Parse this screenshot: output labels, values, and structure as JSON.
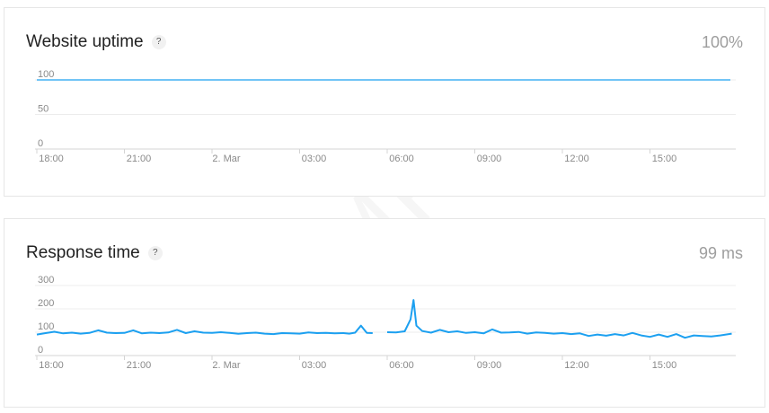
{
  "watermark": "SAMPLE",
  "colors": {
    "line": "#1ca0f0",
    "grid": "#ececec",
    "axis": "#d4d4d4",
    "value": "#9e9e9e"
  },
  "icons": {
    "help": "question-mark-icon"
  },
  "help_symbol": "?",
  "cards": [
    {
      "title": "Website uptime",
      "value": "100%"
    },
    {
      "title": "Response time",
      "value": "99 ms"
    }
  ],
  "chart_data": [
    {
      "type": "line",
      "title": "Website uptime",
      "x_unit": "hours",
      "x_ticks": [
        "18:00",
        "21:00",
        "2. Mar",
        "03:00",
        "06:00",
        "09:00",
        "12:00",
        "15:00"
      ],
      "x_tick_values": [
        0,
        3,
        6,
        9,
        12,
        15,
        18,
        21
      ],
      "xlim": [
        0,
        24
      ],
      "ylim": [
        0,
        100
      ],
      "y_ticks": [
        0,
        50,
        100
      ],
      "grid": true,
      "series": [
        {
          "x": [
            0,
            23.8
          ],
          "y": [
            100,
            100
          ]
        }
      ]
    },
    {
      "type": "line",
      "title": "Response time",
      "x_unit": "hours",
      "x_ticks": [
        "18:00",
        "21:00",
        "2. Mar",
        "03:00",
        "06:00",
        "09:00",
        "12:00",
        "15:00"
      ],
      "x_tick_values": [
        0,
        3,
        6,
        9,
        12,
        15,
        18,
        21
      ],
      "xlim": [
        0,
        24
      ],
      "ylim": [
        0,
        300
      ],
      "y_ticks": [
        0,
        100,
        200,
        300
      ],
      "grid": true,
      "series": [
        {
          "segments": [
            {
              "x": [
                0,
                0.3,
                0.6,
                0.9,
                1.2,
                1.5,
                1.8,
                2.1,
                2.4,
                2.7,
                3.0,
                3.3,
                3.6,
                3.9,
                4.2,
                4.5,
                4.8,
                5.1,
                5.4,
                5.7,
                6.0,
                6.3,
                6.6,
                6.9,
                7.2,
                7.5,
                7.8,
                8.1,
                8.4,
                8.7,
                9.0,
                9.3,
                9.6,
                9.9,
                10.2,
                10.5,
                10.7,
                10.9,
                11.1,
                11.3,
                11.5
              ],
              "y": [
                90,
                96,
                102,
                95,
                98,
                94,
                97,
                108,
                98,
                96,
                97,
                108,
                95,
                98,
                96,
                99,
                110,
                96,
                104,
                98,
                97,
                100,
                97,
                93,
                96,
                98,
                94,
                92,
                96,
                95,
                94,
                99,
                96,
                97,
                95,
                96,
                94,
                98,
                128,
                97,
                96
              ]
            },
            {
              "x": [
                12.0,
                12.3,
                12.6,
                12.8,
                12.9,
                13.0,
                13.2,
                13.5,
                13.8,
                14.1,
                14.4,
                14.7,
                15.0,
                15.3,
                15.6,
                15.9,
                16.2,
                16.5,
                16.8,
                17.1,
                17.4,
                17.7,
                18.0,
                18.3,
                18.6,
                18.9,
                19.2,
                19.5,
                19.8,
                20.1,
                20.4,
                20.7,
                21.0,
                21.3,
                21.6,
                21.9,
                22.2,
                22.5,
                22.8,
                23.1,
                23.4,
                23.8
              ],
              "y": [
                100,
                99,
                104,
                155,
                238,
                128,
                105,
                98,
                110,
                100,
                104,
                97,
                100,
                95,
                112,
                98,
                99,
                101,
                94,
                99,
                97,
                94,
                96,
                92,
                95,
                84,
                90,
                85,
                92,
                86,
                97,
                86,
                80,
                90,
                80,
                92,
                76,
                86,
                84,
                82,
                86,
                94
              ]
            }
          ]
        }
      ]
    }
  ]
}
